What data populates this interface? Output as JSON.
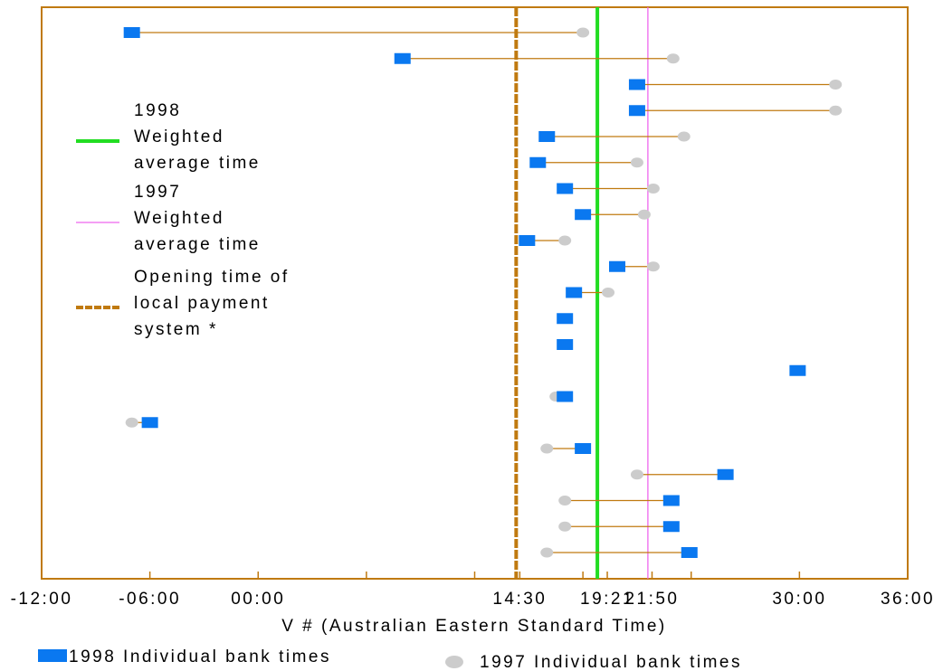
{
  "chart_data": {
    "type": "dumbbell",
    "xlabel": "V # (Australian Eastern Standard Time)",
    "x_axis_unit": "hours",
    "xlim": [
      -12,
      36
    ],
    "x_ticks": [
      {
        "value": -12,
        "label": "-12:00"
      },
      {
        "value": -6,
        "label": "-06:00"
      },
      {
        "value": 0,
        "label": "00:00"
      },
      {
        "value": 6,
        "label": ""
      },
      {
        "value": 12,
        "label": ""
      },
      {
        "value": 14.5,
        "label": "14:30"
      },
      {
        "value": 18,
        "label": ""
      },
      {
        "value": 19.35,
        "label": "19:21"
      },
      {
        "value": 21.83,
        "label": "21:50"
      },
      {
        "value": 24,
        "label": ""
      },
      {
        "value": 30,
        "label": "30:00"
      },
      {
        "value": 36,
        "label": "36:00"
      }
    ],
    "grid": false,
    "reference_lines": [
      {
        "label": "1998 Weighted average time",
        "legend_lines": [
          "1998",
          "Weighted",
          "average time"
        ],
        "x": 18.8,
        "color": "#22dd22",
        "style": "solid-thick"
      },
      {
        "label": "1997 Weighted average time",
        "legend_lines": [
          "1997",
          "Weighted",
          "average time"
        ],
        "x": 21.6,
        "color": "#ee66ee",
        "style": "solid-thin"
      },
      {
        "label": "Opening time of local payment system *",
        "legend_lines": [
          "Opening time of",
          "local payment",
          "system *"
        ],
        "x": 14.3,
        "color": "#c07a10",
        "style": "dashed"
      }
    ],
    "series": [
      {
        "name": "1998 Individual bank times",
        "color": "#0a78f0",
        "marker": "square"
      },
      {
        "name": "1997 Individual bank times",
        "color": "#cccccc",
        "marker": "circle"
      }
    ],
    "connector_color": "#c07a10",
    "rows": [
      {
        "t1998": -7,
        "t1997": 18
      },
      {
        "t1998": 8,
        "t1997": 23
      },
      {
        "t1998": 21,
        "t1997": 32
      },
      {
        "t1998": 21,
        "t1997": 32
      },
      {
        "t1998": 16,
        "t1997": 23.6
      },
      {
        "t1998": 15.5,
        "t1997": 21
      },
      {
        "t1998": 17,
        "t1997": 21.9
      },
      {
        "t1998": 18,
        "t1997": 21.4
      },
      {
        "t1998": 14.9,
        "t1997": 17
      },
      {
        "t1998": 19.9,
        "t1997": 21.9
      },
      {
        "t1998": 17.5,
        "t1997": 19.4
      },
      {
        "t1998": 17,
        "t1997": null
      },
      {
        "t1998": 17,
        "t1997": null
      },
      {
        "t1998": 29.9,
        "t1997": null
      },
      {
        "t1998": 17,
        "t1997": 16.5
      },
      {
        "t1998": -6,
        "t1997": -7
      },
      {
        "t1998": 18,
        "t1997": 16
      },
      {
        "t1998": 25.9,
        "t1997": 21
      },
      {
        "t1998": 22.9,
        "t1997": 17
      },
      {
        "t1998": 22.9,
        "t1997": 17
      },
      {
        "t1998": 23.9,
        "t1997": 16
      }
    ],
    "legend_placement": "bottom and inside-left"
  },
  "colors": {
    "frame": "#c07a10",
    "background": "#ffffff"
  }
}
